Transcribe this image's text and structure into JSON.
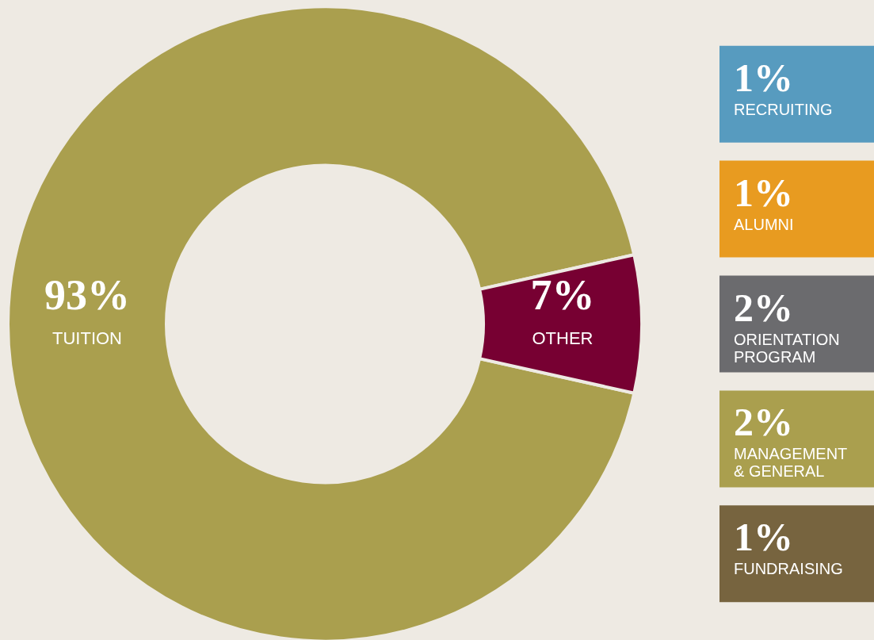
{
  "chart_data": [
    {
      "type": "donut",
      "categories": [
        "TUITION",
        "OTHER"
      ],
      "values": [
        93,
        7
      ],
      "colors": [
        "#aa9f4e",
        "#770032"
      ],
      "value_labels": [
        "93%",
        "7%"
      ]
    },
    {
      "type": "other",
      "categories": [
        "RECRUITING",
        "ALUMNI",
        "ORIENTATION PROGRAM",
        "MANAGEMENT & GENERAL",
        "FUNDRAISING"
      ],
      "values": [
        1,
        1,
        2,
        2,
        1
      ],
      "colors": [
        "#579bbf",
        "#e89b20",
        "#6b6b6e",
        "#aa9f4e",
        "#77643f"
      ],
      "value_labels": [
        "1%",
        "1%",
        "2%",
        "2%",
        "1%"
      ]
    }
  ]
}
